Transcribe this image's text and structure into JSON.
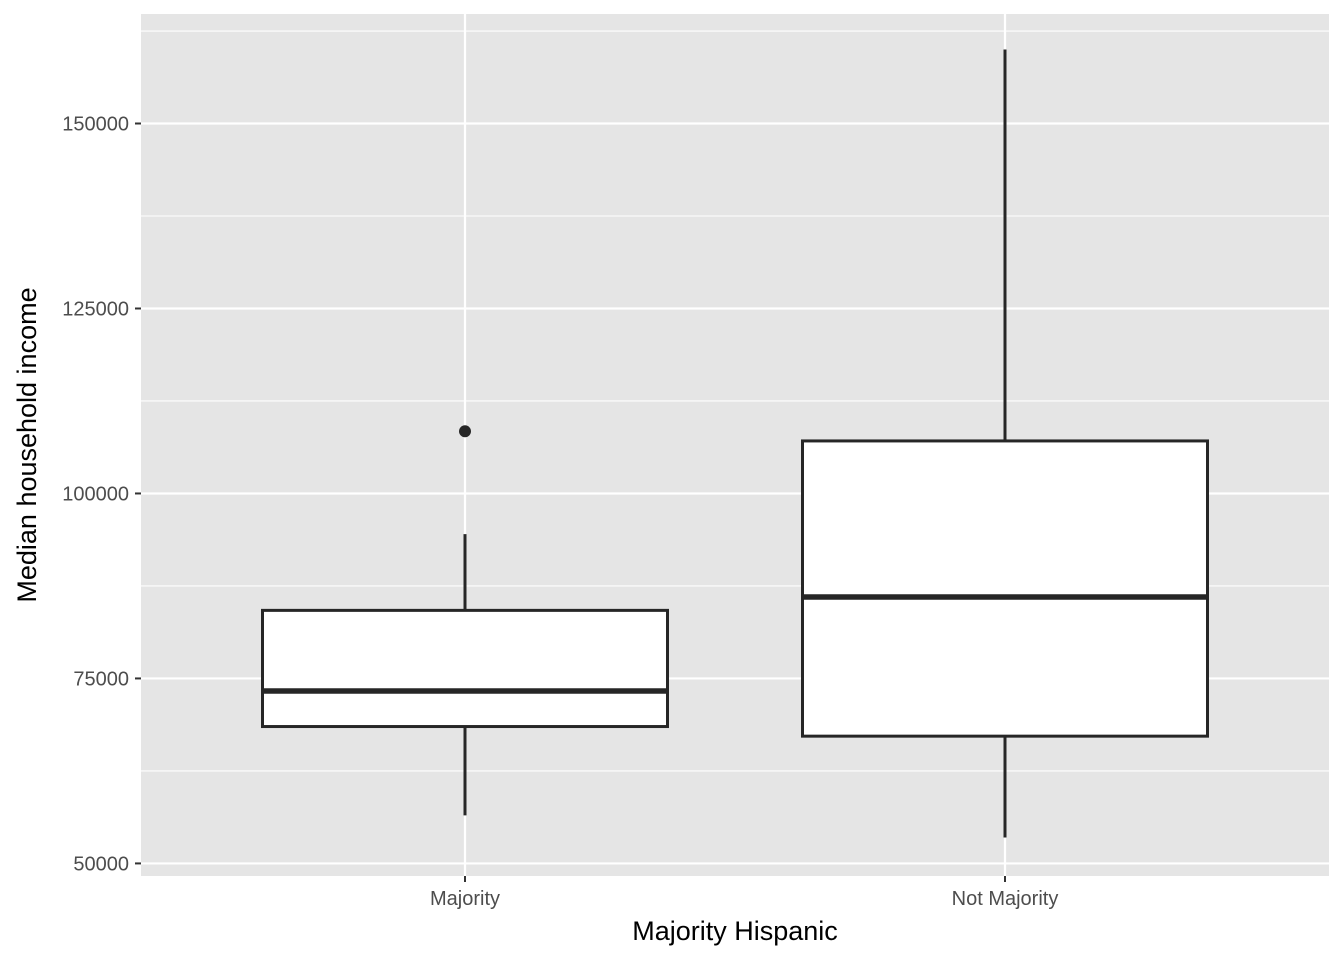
{
  "chart_data": {
    "type": "box",
    "xlabel": "Majority Hispanic",
    "ylabel": "Median household income",
    "ylim": [
      48300,
      164800
    ],
    "y_ticks": [
      50000,
      75000,
      100000,
      125000,
      150000
    ],
    "y_tick_labels": [
      "50000",
      "75000",
      "100000",
      "125000",
      "150000"
    ],
    "grid": true,
    "colors": {
      "panel": "#e5e5e5",
      "grid": "#ffffff",
      "box_fill": "#ffffff",
      "box_line": "#262626",
      "tick_label": "#4d4d4d"
    },
    "categories": [
      "Majority",
      "Not Majority"
    ],
    "boxes": [
      {
        "category": "Majority",
        "whisker_low": 56500,
        "q1": 68500,
        "median": 73300,
        "q3": 84200,
        "whisker_high": 94500,
        "outliers": [
          108400
        ]
      },
      {
        "category": "Not Majority",
        "whisker_low": 53500,
        "q1": 67200,
        "median": 86000,
        "q3": 107100,
        "whisker_high": 160000,
        "outliers": []
      }
    ]
  }
}
